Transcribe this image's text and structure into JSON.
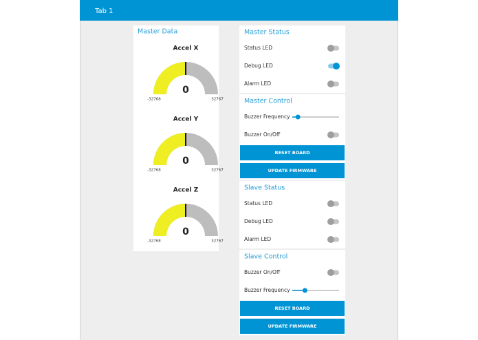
{
  "header": {
    "tab": "Tab 1"
  },
  "left": {
    "title": "Master Data",
    "gauges": [
      {
        "label": "Accel X",
        "value": 0,
        "min": -32768,
        "max": 32767
      },
      {
        "label": "Accel Y",
        "value": 0,
        "min": -32768,
        "max": 32767
      },
      {
        "label": "Accel Z",
        "value": 0,
        "min": -32768,
        "max": 32767
      }
    ]
  },
  "right": [
    {
      "title": "Master Status",
      "rows": [
        {
          "type": "toggle",
          "label": "Status LED",
          "on": false
        },
        {
          "type": "toggle",
          "label": "Debug LED",
          "on": true
        },
        {
          "type": "toggle",
          "label": "Alarm LED",
          "on": false
        }
      ]
    },
    {
      "title": "Master Control",
      "rows": [
        {
          "type": "slider",
          "label": "Buzzer Frequency"
        },
        {
          "type": "toggle",
          "label": "Buzzer On/Off",
          "on": false
        },
        {
          "type": "button",
          "label": "RESET BOARD"
        },
        {
          "type": "button",
          "label": "UPDATE FIRMWARE"
        }
      ]
    },
    {
      "title": "Slave Status",
      "rows": [
        {
          "type": "toggle",
          "label": "Status LED",
          "on": false
        },
        {
          "type": "toggle",
          "label": "Debug LED",
          "on": false
        },
        {
          "type": "toggle",
          "label": "Alarm LED",
          "on": false
        }
      ]
    },
    {
      "title": "Slave Control",
      "rows": [
        {
          "type": "toggle",
          "label": "Buzzer On/Off",
          "on": false
        },
        {
          "type": "slider",
          "label": "Buzzer Frequency"
        },
        {
          "type": "button",
          "label": "RESET BOARD"
        },
        {
          "type": "button",
          "label": "UPDATE FIRMWARE"
        }
      ]
    }
  ]
}
